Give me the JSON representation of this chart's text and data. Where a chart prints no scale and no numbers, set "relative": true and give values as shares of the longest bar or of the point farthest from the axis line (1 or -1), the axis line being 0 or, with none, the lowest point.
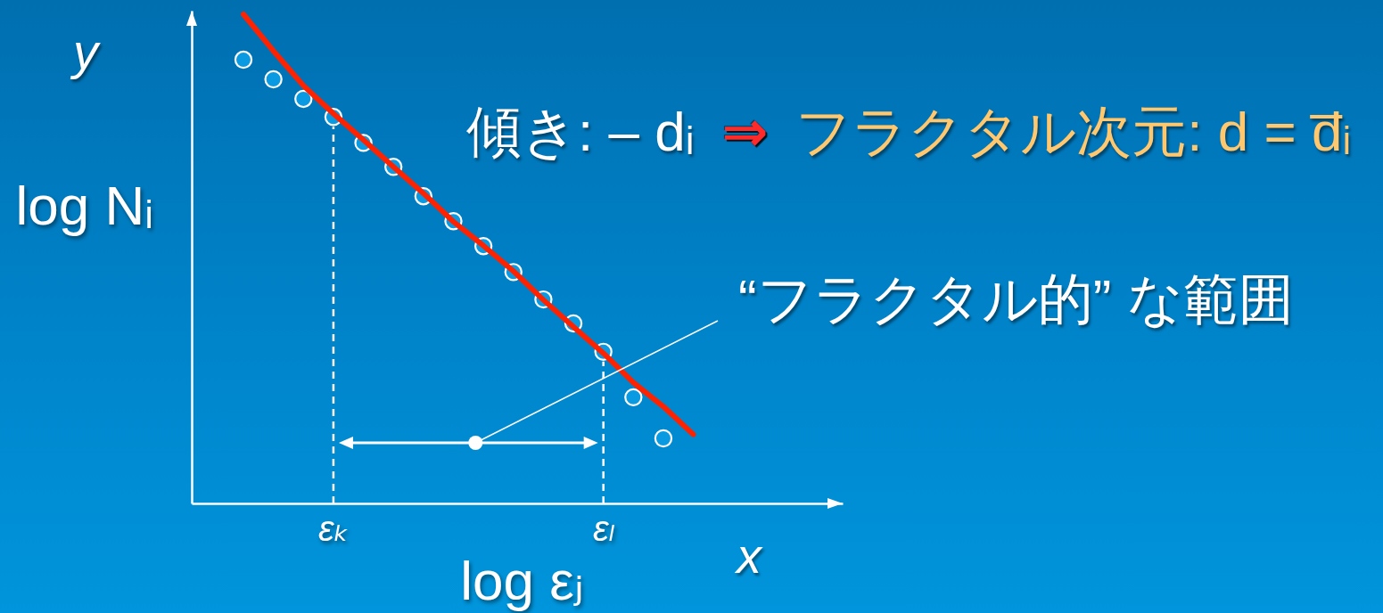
{
  "chart_data": {
    "type": "scatter",
    "relative": true,
    "xlabel": "log εⱼ",
    "ylabel": "log Nᵢ",
    "annotations": [
      "傾き: – dᵢ",
      "⇒",
      "フラクタル次元: d = d̅ᵢ",
      "“フラクタル的” な範囲",
      "x",
      "y"
    ],
    "categories": [
      null,
      null,
      null,
      "εₖ",
      null,
      null,
      null,
      null,
      null,
      null,
      null,
      null,
      "εₗ",
      null,
      null,
      null
    ],
    "series": [
      {
        "color": "#0a9ae2",
        "marker": "circle",
        "values": [
          0.907,
          0.867,
          0.827,
          0.79,
          0.737,
          0.688,
          0.628,
          0.577,
          0.526,
          0.473,
          0.417,
          0.368,
          0.31,
          0.217,
          0.133,
          null
        ]
      },
      {
        "type": "line",
        "color": "#ff2200",
        "values": [
          1.0,
          0.925,
          0.854,
          0.797,
          0.743,
          0.688,
          0.634,
          0.576,
          0.527,
          0.475,
          0.416,
          0.361,
          0.307,
          0.247,
          0.198,
          0.141
        ]
      }
    ],
    "ref_lines": [
      {
        "axis": "x",
        "value": "εₖ",
        "line_style": "dashed",
        "color": "#ffffff"
      },
      {
        "axis": "x",
        "value": "εₗ",
        "line_style": "dashed",
        "color": "#ffffff"
      }
    ]
  }
}
